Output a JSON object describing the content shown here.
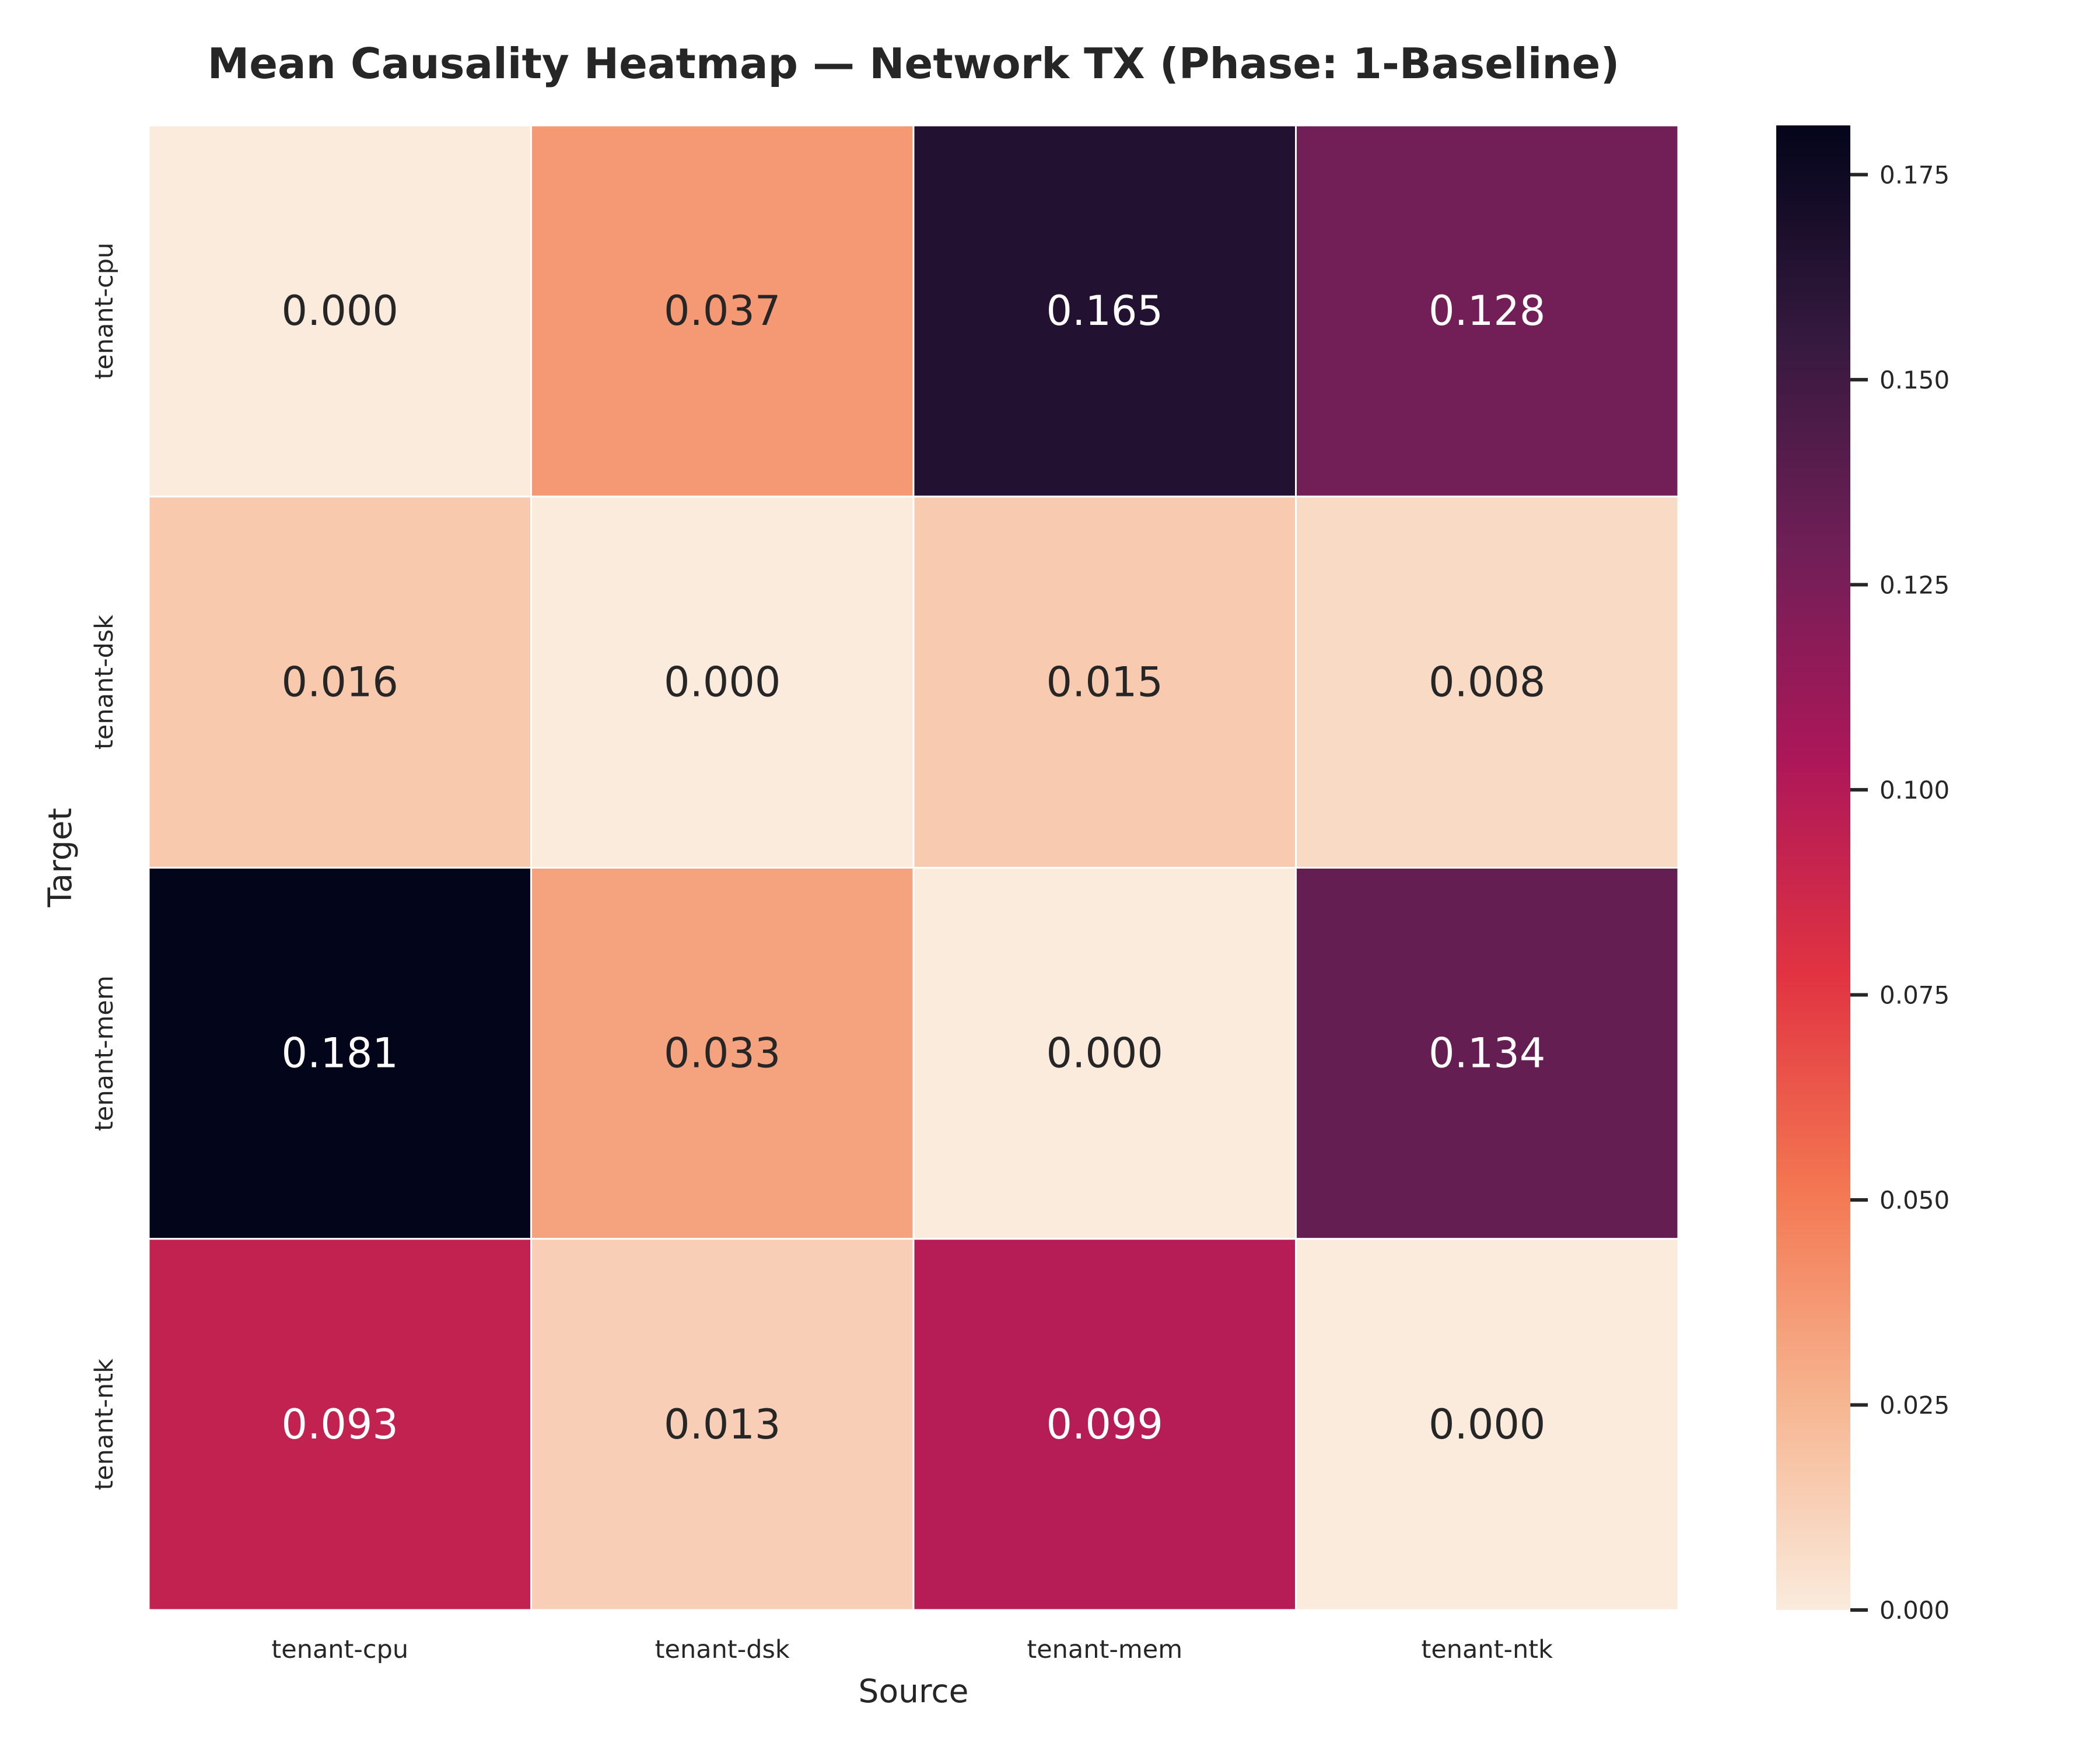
{
  "chart_data": {
    "type": "heatmap",
    "title": "Mean Causality Heatmap — Network TX (Phase: 1-Baseline)",
    "xlabel": "Source",
    "ylabel": "Target",
    "x_categories": [
      "tenant-cpu",
      "tenant-dsk",
      "tenant-mem",
      "tenant-ntk"
    ],
    "y_categories": [
      "tenant-cpu",
      "tenant-dsk",
      "tenant-mem",
      "tenant-ntk"
    ],
    "values": [
      [
        0.0,
        0.037,
        0.165,
        0.128
      ],
      [
        0.016,
        0.0,
        0.015,
        0.008
      ],
      [
        0.181,
        0.033,
        0.0,
        0.134
      ],
      [
        0.093,
        0.013,
        0.099,
        0.0
      ]
    ],
    "cell_labels": [
      [
        "0.000",
        "0.037",
        "0.165",
        "0.128"
      ],
      [
        "0.016",
        "0.000",
        "0.015",
        "0.008"
      ],
      [
        "0.181",
        "0.033",
        "0.000",
        "0.134"
      ],
      [
        "0.093",
        "0.013",
        "0.099",
        "0.000"
      ]
    ],
    "colorbar": {
      "range": [
        0.0,
        0.181
      ],
      "ticks": [
        0.0,
        0.025,
        0.05,
        0.075,
        0.1,
        0.125,
        0.15,
        0.175
      ],
      "tick_labels": [
        "0.000",
        "0.025",
        "0.050",
        "0.075",
        "0.100",
        "0.125",
        "0.150",
        "0.175"
      ],
      "colormap": "rocket_r",
      "stops": [
        "#faebdd",
        "#f6b48f",
        "#f37651",
        "#e13342",
        "#ad1759",
        "#701f57",
        "#35193e",
        "#03051a"
      ]
    },
    "grid": false,
    "colorbar_position": "right"
  }
}
